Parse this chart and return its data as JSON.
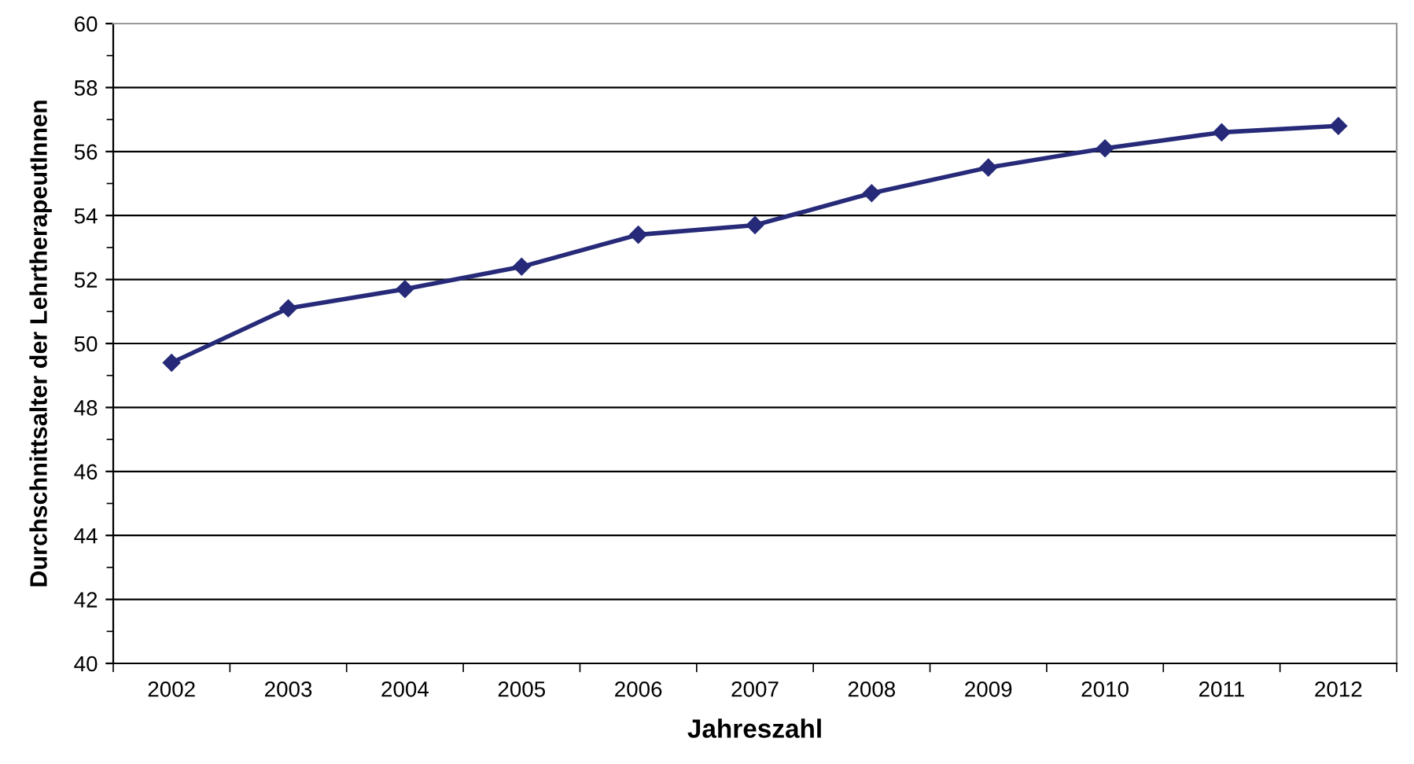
{
  "chart_data": {
    "type": "line",
    "xlabel": "Jahreszahl",
    "ylabel": "Durchschnittsalter der LehrtherapeutInnen",
    "categories": [
      "2002",
      "2003",
      "2004",
      "2005",
      "2006",
      "2007",
      "2008",
      "2009",
      "2010",
      "2011",
      "2012"
    ],
    "series": [
      {
        "color": "#262a78",
        "values": [
          49.4,
          51.1,
          51.7,
          52.4,
          53.4,
          53.7,
          54.7,
          55.5,
          56.1,
          56.6,
          56.8
        ]
      }
    ],
    "ylim": [
      40,
      60
    ],
    "yticks": [
      40,
      42,
      44,
      46,
      48,
      50,
      52,
      54,
      56,
      58,
      60
    ],
    "grid": "y",
    "marker": "diamond",
    "line_style": "solid"
  }
}
